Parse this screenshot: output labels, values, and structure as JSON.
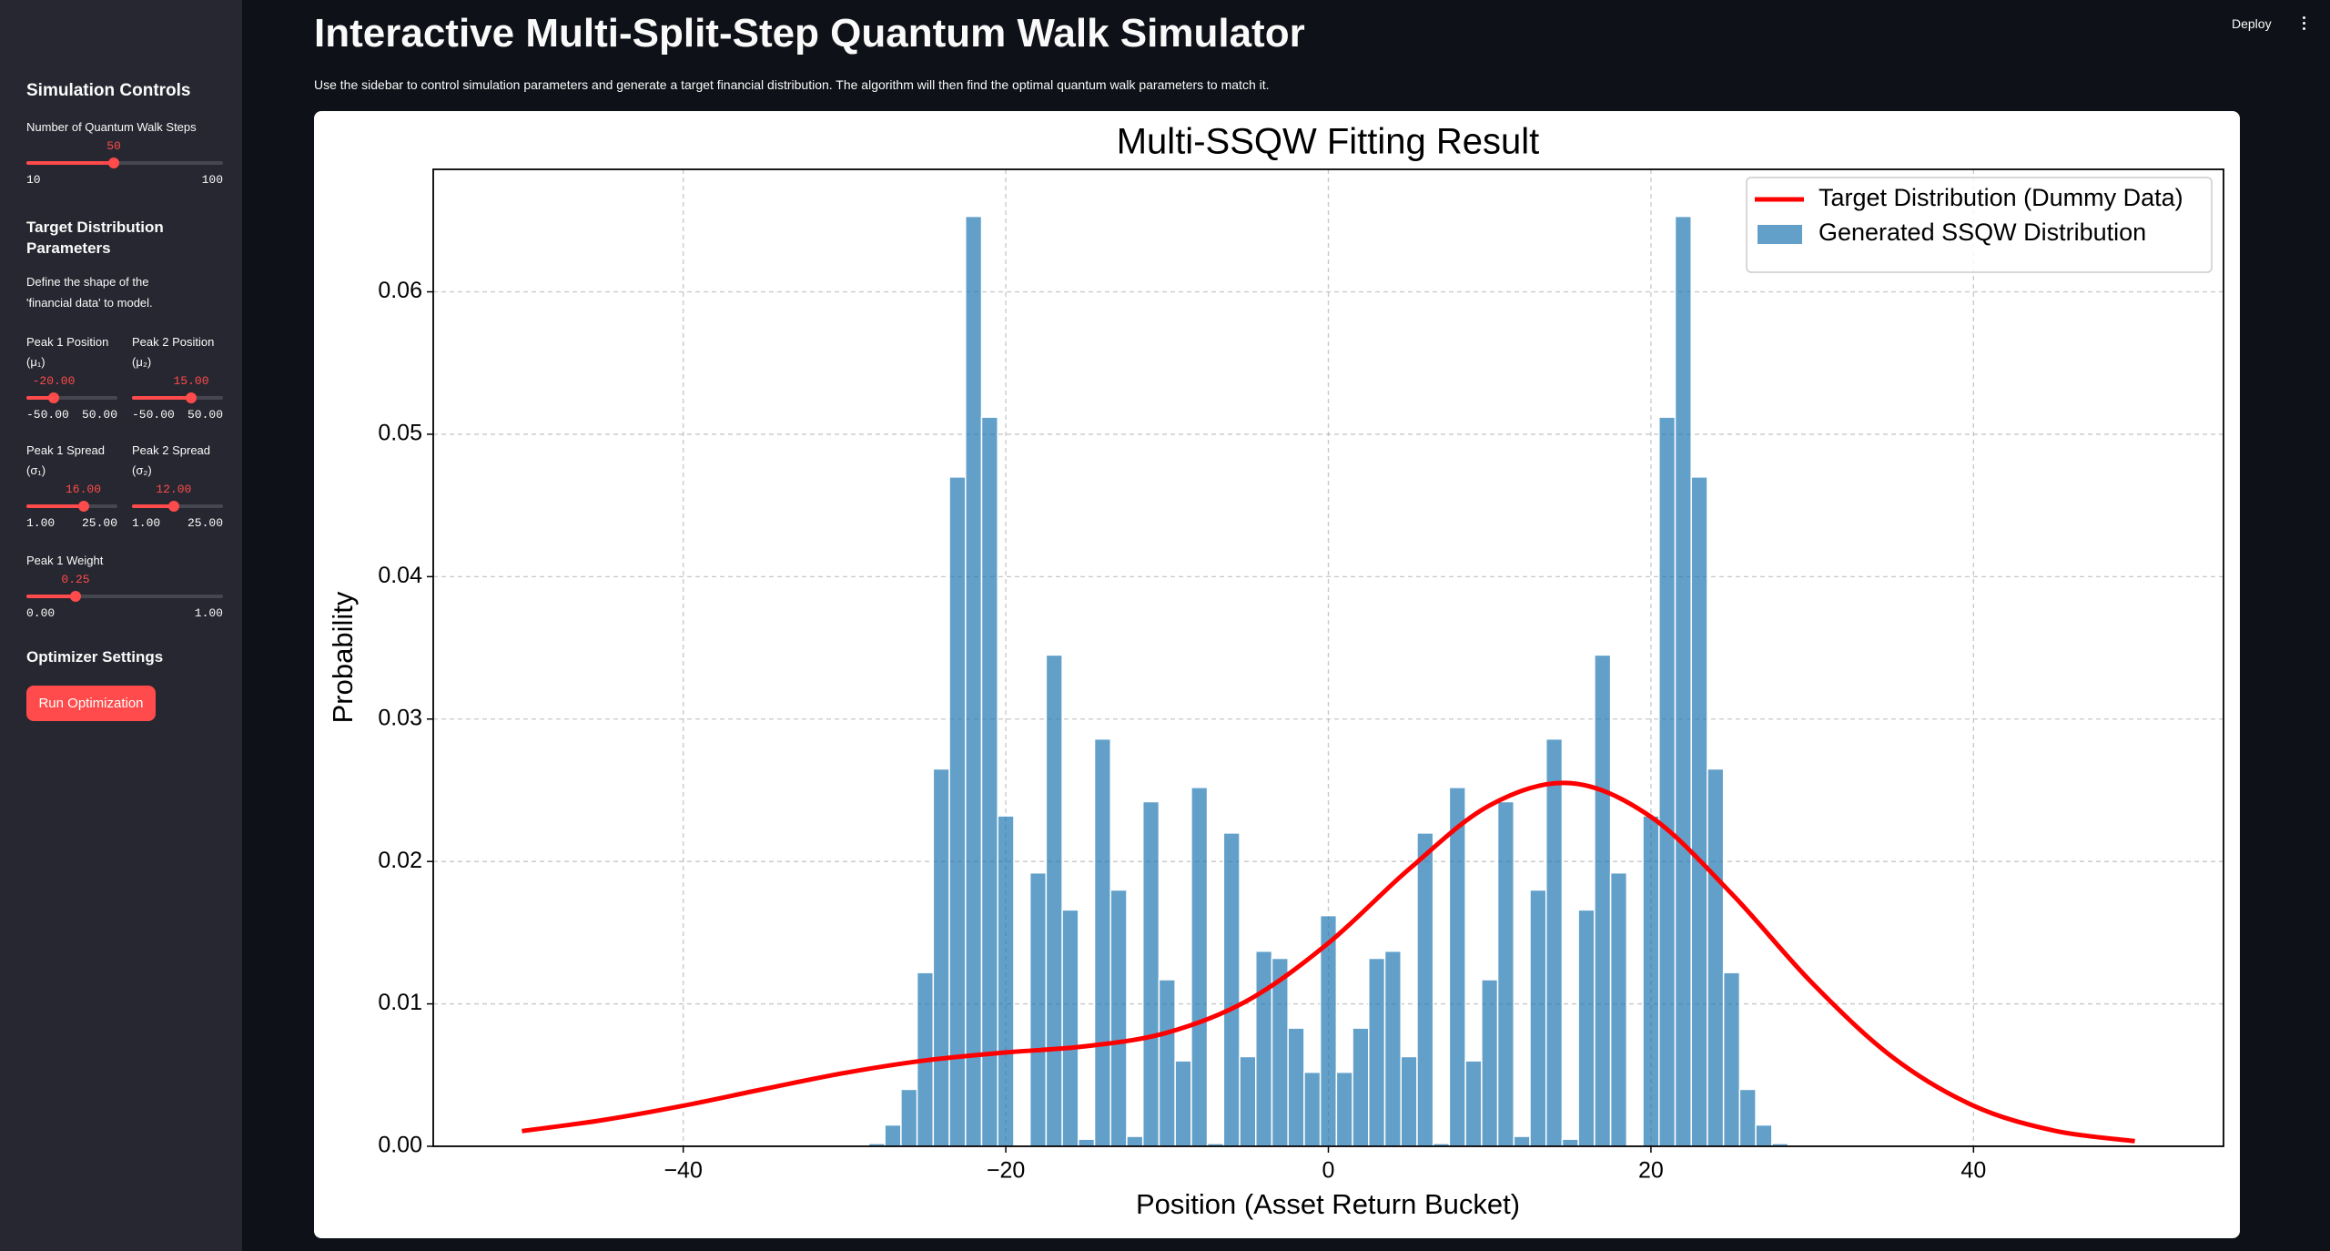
{
  "header": {
    "title": "Interactive Multi-Split-Step Quantum Walk Simulator",
    "description": "Use the sidebar to control simulation parameters and generate a target financial distribution. The algorithm will then find the optimal quantum walk parameters to match it.",
    "deploy": "Deploy"
  },
  "sidebar": {
    "heading": "Simulation Controls",
    "target_heading": "Target Distribution Parameters",
    "target_text": "Define the shape of the 'financial data' to model.",
    "optimizer_heading": "Optimizer Settings",
    "button": "Run Optimization",
    "sliders": [
      {
        "label": "Number of Quantum Walk Steps",
        "value": 50,
        "value_label": "50",
        "min": 10,
        "min_label": "10",
        "max": 100,
        "max_label": "100"
      },
      {
        "label": "Peak 1 Position (μ₁)",
        "value": -20,
        "value_label": "-20.00",
        "min": -50,
        "min_label": "-50.00",
        "max": 50,
        "max_label": "50.00"
      },
      {
        "label": "Peak 2 Position (μ₂)",
        "value": 15,
        "value_label": "15.00",
        "min": -50,
        "min_label": "-50.00",
        "max": 50,
        "max_label": "50.00"
      },
      {
        "label": "Peak 1 Spread (σ₁)",
        "value": 16,
        "value_label": "16.00",
        "min": 1,
        "min_label": "1.00",
        "max": 25,
        "max_label": "25.00"
      },
      {
        "label": "Peak 2 Spread (σ₂)",
        "value": 12,
        "value_label": "12.00",
        "min": 1,
        "min_label": "1.00",
        "max": 25,
        "max_label": "25.00"
      },
      {
        "label": "Peak 1 Weight",
        "value": 0.25,
        "value_label": "0.25",
        "min": 0,
        "min_label": "0.00",
        "max": 1,
        "max_label": "1.00"
      }
    ]
  },
  "chart_data": {
    "type": "combo",
    "title": "Multi-SSQW Fitting Result",
    "xlabel": "Position (Asset Return Bucket)",
    "ylabel": "Probability",
    "xlim": [
      -55.5,
      55.5
    ],
    "ylim": [
      0,
      0.0686
    ],
    "xticks": [
      {
        "value": -40,
        "label": "−40"
      },
      {
        "value": -20,
        "label": "−20"
      },
      0,
      20,
      40
    ],
    "yticks": [
      {
        "value": 0,
        "label": "0.00"
      },
      {
        "value": 0.01,
        "label": "0.01"
      },
      {
        "value": 0.02,
        "label": "0.02"
      },
      {
        "value": 0.03,
        "label": "0.03"
      },
      {
        "value": 0.04,
        "label": "0.04"
      },
      {
        "value": 0.05,
        "label": "0.05"
      },
      {
        "value": 0.06,
        "label": "0.06"
      }
    ],
    "grid": true,
    "legend": "upper right",
    "series": [
      {
        "name": "Target Distribution (Dummy Data)",
        "type": "line",
        "color": "#ff0000",
        "x": [
          -50,
          -45,
          -40,
          -35,
          -30,
          -25,
          -20,
          -15,
          -10,
          -5,
          0,
          5,
          10,
          15,
          20,
          25,
          30,
          35,
          40,
          45,
          50
        ],
        "values": [
          0.00107,
          0.00184,
          0.00285,
          0.00402,
          0.00515,
          0.00603,
          0.00659,
          0.00703,
          0.00798,
          0.01024,
          0.01427,
          0.01946,
          0.02394,
          0.0255,
          0.02313,
          0.01774,
          0.01146,
          0.00624,
          0.00285,
          0.0011,
          0.00036
        ]
      },
      {
        "name": "Generated SSQW Distribution",
        "type": "bar",
        "color": "#1f77b4",
        "x": [
          -28,
          -27,
          -26,
          -25,
          -24,
          -23,
          -22,
          -21,
          -20,
          -19,
          -18,
          -17,
          -16,
          -15,
          -14,
          -13,
          -12,
          -11,
          -10,
          -9,
          -8,
          -7,
          -6,
          -5,
          -4,
          -3,
          -2,
          -1,
          0,
          1,
          2,
          3,
          4,
          5,
          6,
          7,
          8,
          9,
          10,
          11,
          12,
          13,
          14,
          15,
          16,
          17,
          18,
          19,
          20,
          21,
          22,
          23,
          24,
          25,
          26,
          27,
          28
        ],
        "values": [
          0.0002,
          0.0015,
          0.004,
          0.0122,
          0.0265,
          0.047,
          0.0653,
          0.0512,
          0.0232,
          0,
          0.0192,
          0.0345,
          0.0166,
          0.0005,
          0.0286,
          0.018,
          0.0007,
          0.0242,
          0.0117,
          0.006,
          0.0252,
          0.0002,
          0.022,
          0.0063,
          0.0137,
          0.0132,
          0.0083,
          0.0052,
          0.0162,
          0.0052,
          0.0083,
          0.0132,
          0.0137,
          0.0063,
          0.022,
          0.0002,
          0.0252,
          0.006,
          0.0117,
          0.0242,
          0.0007,
          0.018,
          0.0286,
          0.0005,
          0.0166,
          0.0345,
          0.0192,
          0,
          0.0232,
          0.0512,
          0.0653,
          0.047,
          0.0265,
          0.0122,
          0.004,
          0.0015,
          0.0002
        ]
      }
    ]
  }
}
